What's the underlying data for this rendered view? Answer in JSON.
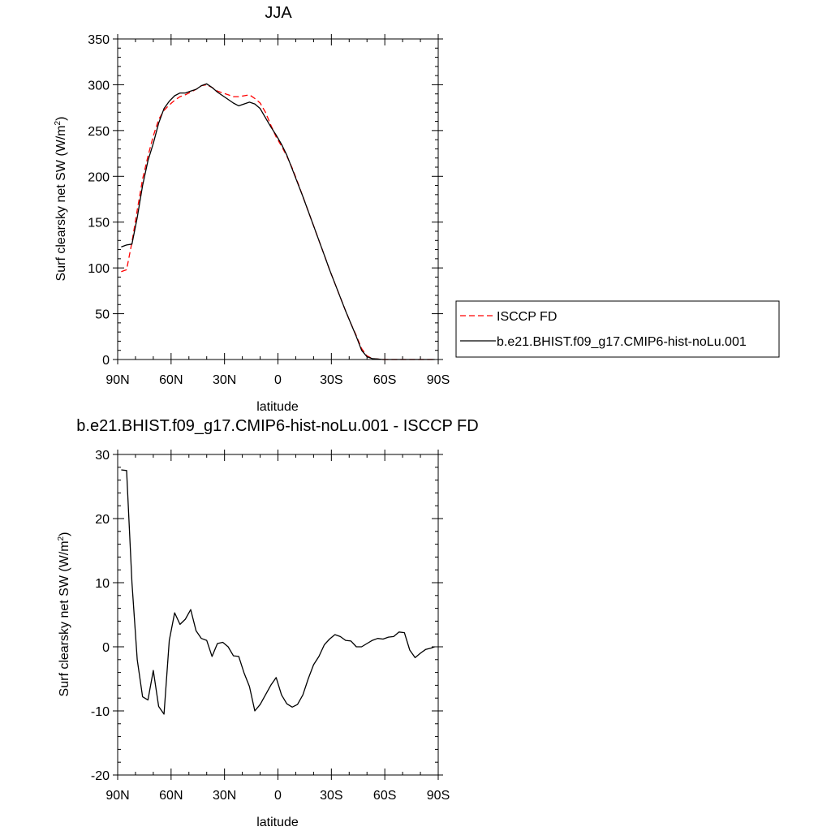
{
  "colors": {
    "isccp": "#ff0000",
    "model": "#000000",
    "axis": "#000000",
    "background": "#ffffff"
  },
  "chart_data": [
    {
      "type": "line",
      "title": "JJA",
      "xlabel": "latitude",
      "ylabel_main": "Surf clearsky net SW (W/m",
      "ylabel_sup": "2",
      "ylabel_close": ")",
      "xlim": [
        90,
        -90
      ],
      "ylim": [
        0,
        350
      ],
      "x_ticks": [
        90,
        60,
        30,
        0,
        -30,
        -60,
        -90
      ],
      "x_tick_labels": [
        "90N",
        "60N",
        "30N",
        "0",
        "30S",
        "60S",
        "90S"
      ],
      "y_ticks": [
        0,
        50,
        100,
        150,
        200,
        250,
        300,
        350
      ],
      "y_tick_labels": [
        "0",
        "50",
        "100",
        "150",
        "200",
        "250",
        "300",
        "350"
      ],
      "grid": false,
      "legend_position": "right",
      "series": [
        {
          "name": "ISCCP FD",
          "style": "dashed",
          "color": "#ff0000",
          "x": [
            88,
            85,
            82,
            79,
            76,
            73,
            70,
            67,
            64,
            61,
            58,
            55,
            52,
            49,
            46,
            43,
            40,
            37,
            34,
            31,
            28,
            25,
            22,
            19,
            16,
            13,
            10,
            7,
            4,
            1,
            -2,
            -5,
            -8,
            -11,
            -14,
            -17,
            -20,
            -23,
            -26,
            -29,
            -32,
            -35,
            -38,
            -41,
            -44,
            -47,
            -50,
            -53,
            -56,
            -59,
            -62,
            -65,
            -68,
            -71,
            -74,
            -77,
            -80,
            -83,
            -86,
            -88
          ],
          "y": [
            96,
            98,
            128,
            163,
            197,
            222,
            244,
            262,
            272,
            278,
            283,
            287,
            289,
            292,
            295,
            299,
            300,
            297,
            293,
            291,
            289,
            287,
            287,
            288,
            289,
            285,
            280,
            270,
            256,
            243,
            233,
            222,
            209,
            194,
            178,
            162,
            146,
            130,
            114,
            98,
            83,
            68,
            53,
            39,
            26,
            12,
            4,
            1,
            0.5,
            0,
            0,
            0,
            0,
            0,
            0,
            0,
            0,
            0,
            0,
            0
          ]
        },
        {
          "name": "b.e21.BHIST.f09_g17.CMIP6-hist-noLu.001",
          "style": "solid",
          "color": "#000000",
          "x": [
            88,
            85,
            82,
            79,
            76,
            73,
            70,
            67,
            64,
            61,
            58,
            55,
            52,
            49,
            46,
            43,
            40,
            37,
            34,
            31,
            28,
            25,
            22,
            19,
            16,
            13,
            10,
            7,
            4,
            1,
            -2,
            -5,
            -8,
            -11,
            -14,
            -17,
            -20,
            -23,
            -26,
            -29,
            -32,
            -35,
            -38,
            -41,
            -44,
            -47,
            -50,
            -53,
            -56,
            -59,
            -62,
            -65,
            -68,
            -71,
            -74,
            -77,
            -80,
            -83,
            -86,
            -88
          ],
          "y": [
            123,
            125,
            126,
            155,
            190,
            217,
            236,
            258,
            274,
            282,
            288,
            291,
            291,
            293,
            295,
            299,
            301,
            297,
            292,
            288,
            284,
            280,
            277,
            279,
            281,
            279,
            274,
            264,
            254,
            245,
            235,
            223,
            208,
            193,
            178,
            162,
            146,
            130,
            114,
            98,
            83,
            68,
            53,
            39,
            25,
            10,
            3,
            1,
            0.5,
            0,
            0,
            0,
            0,
            0,
            0,
            0,
            0,
            0,
            0,
            0
          ]
        }
      ]
    },
    {
      "type": "line",
      "title": "b.e21.BHIST.f09_g17.CMIP6-hist-noLu.001 - ISCCP FD",
      "xlabel": "latitude",
      "ylabel_main": "Surf clearsky net SW (W/m",
      "ylabel_sup": "2",
      "ylabel_close": ")",
      "xlim": [
        90,
        -90
      ],
      "ylim": [
        -20,
        30
      ],
      "x_ticks": [
        90,
        60,
        30,
        0,
        -30,
        -60,
        -90
      ],
      "x_tick_labels": [
        "90N",
        "60N",
        "30N",
        "0",
        "30S",
        "60S",
        "90S"
      ],
      "y_ticks": [
        -20,
        -10,
        0,
        10,
        20,
        30
      ],
      "y_tick_labels": [
        "-20",
        "-10",
        "0",
        "10",
        "20",
        "30"
      ],
      "grid": false,
      "series": [
        {
          "style": "solid",
          "color": "#000000",
          "x": [
            88,
            85,
            82,
            79,
            76,
            73,
            70,
            67,
            64,
            61,
            58,
            55,
            52,
            49,
            46,
            43,
            40,
            37,
            34,
            31,
            28,
            25,
            22,
            19,
            16,
            13,
            10,
            7,
            4,
            1,
            -2,
            -5,
            -8,
            -11,
            -14,
            -17,
            -20,
            -23,
            -26,
            -29,
            -32,
            -35,
            -38,
            -41,
            -44,
            -47,
            -50,
            -53,
            -56,
            -59,
            -62,
            -65,
            -68,
            -71,
            -74,
            -77,
            -80,
            -83,
            -86,
            -88
          ],
          "y": [
            27.6,
            27.5,
            10,
            -2,
            -7.8,
            -8.3,
            -3.7,
            -9.3,
            -10.5,
            1,
            5.3,
            3.5,
            4.3,
            5.8,
            2.5,
            1.3,
            1,
            -1.5,
            0.5,
            0.7,
            0,
            -1.4,
            -1.5,
            -4.1,
            -6.2,
            -10,
            -9,
            -7.5,
            -6,
            -4.8,
            -7.5,
            -8.9,
            -9.4,
            -9,
            -7.5,
            -5,
            -2.8,
            -1.5,
            0.3,
            1.2,
            1.9,
            1.6,
            1,
            0.9,
            0,
            0,
            0.5,
            1,
            1.3,
            1.2,
            1.5,
            1.6,
            2.3,
            2.2,
            -0.5,
            -1.7,
            -1,
            -0.4,
            -0.2,
            0
          ]
        }
      ]
    }
  ]
}
